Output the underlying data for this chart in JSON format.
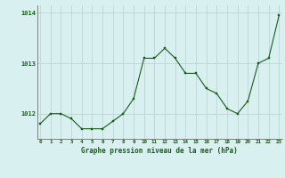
{
  "x": [
    0,
    1,
    2,
    3,
    4,
    5,
    6,
    7,
    8,
    9,
    10,
    11,
    12,
    13,
    14,
    15,
    16,
    17,
    18,
    19,
    20,
    21,
    22,
    23
  ],
  "y": [
    1011.8,
    1012.0,
    1012.0,
    1011.9,
    1011.7,
    1011.7,
    1011.7,
    1011.85,
    1012.0,
    1012.3,
    1013.1,
    1013.1,
    1013.3,
    1013.1,
    1012.8,
    1012.8,
    1012.5,
    1012.4,
    1012.1,
    1012.0,
    1012.25,
    1013.0,
    1013.1,
    1013.95
  ],
  "line_color": "#1a5c1a",
  "marker_color": "#1a5c1a",
  "bg_color": "#d8f0f0",
  "grid_color": "#b8d0d0",
  "xlabel": "Graphe pression niveau de la mer (hPa)",
  "xlabel_color": "#1a5c1a",
  "tick_color": "#1a5c1a",
  "ytick_labels": [
    "1012",
    "1013",
    "1014"
  ],
  "ytick_values": [
    1012,
    1013,
    1014
  ],
  "xtick_values": [
    0,
    1,
    2,
    3,
    4,
    5,
    6,
    7,
    8,
    9,
    10,
    11,
    12,
    13,
    14,
    15,
    16,
    17,
    18,
    19,
    20,
    21,
    22,
    23
  ],
  "ylim": [
    1011.5,
    1014.15
  ],
  "xlim": [
    -0.3,
    23.3
  ],
  "figsize": [
    3.2,
    2.0
  ],
  "dpi": 100
}
